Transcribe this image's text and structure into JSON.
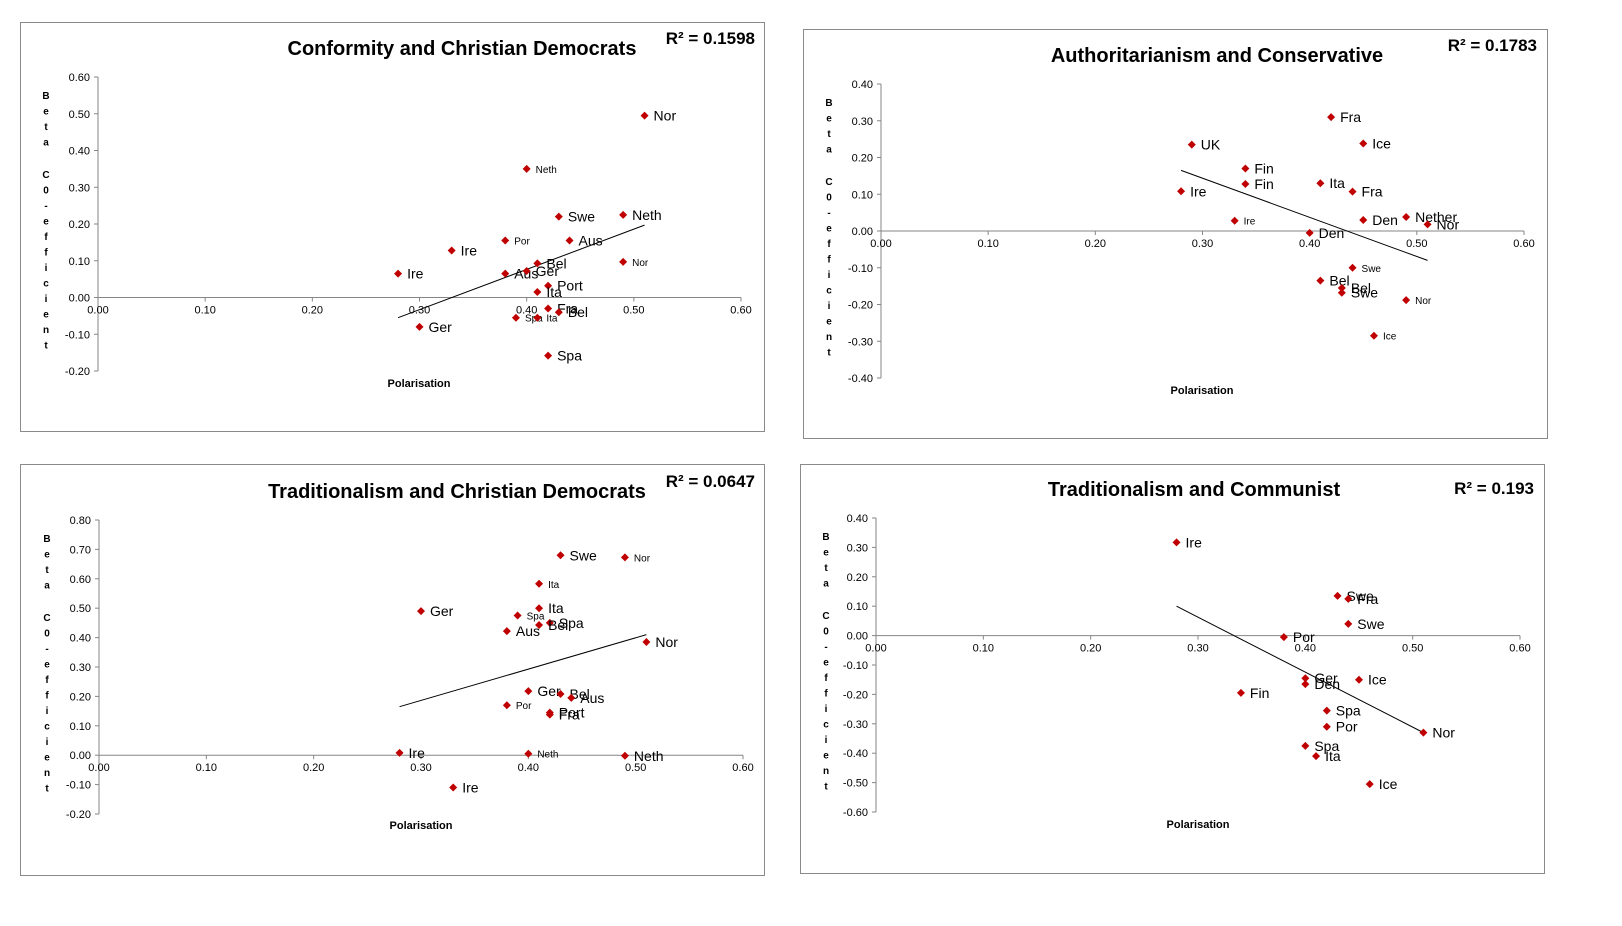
{
  "chart_data": [
    {
      "type": "scatter",
      "title": "Conformity and Christian Democrats",
      "r_squared": "R² = 0.1598",
      "xlabel": "Polarisation",
      "ylabel": "Beta C0-efficient",
      "xlim": [
        0,
        0.6
      ],
      "ylim": [
        -0.2,
        0.6
      ],
      "xticks": [
        "0.00",
        "0.10",
        "0.20",
        "0.30",
        "0.40",
        "0.50",
        "0.60"
      ],
      "yticks": [
        "0.60",
        "0.50",
        "0.40",
        "0.30",
        "0.20",
        "0.10",
        "0.00",
        "-0.10",
        "-0.20"
      ],
      "marker_color": "#c00000",
      "trendline": {
        "x": [
          0.28,
          0.51
        ],
        "y": [
          -0.055,
          0.197
        ]
      },
      "points": [
        {
          "label": "Nor",
          "x": 0.51,
          "y": 0.495,
          "big": true
        },
        {
          "label": "Neth",
          "x": 0.4,
          "y": 0.35,
          "big": false
        },
        {
          "label": "Swe",
          "x": 0.43,
          "y": 0.22,
          "big": true
        },
        {
          "label": "Neth",
          "x": 0.49,
          "y": 0.225,
          "big": true
        },
        {
          "label": "Por",
          "x": 0.38,
          "y": 0.155,
          "big": false
        },
        {
          "label": "Aus",
          "x": 0.44,
          "y": 0.155,
          "big": true
        },
        {
          "label": "Ire",
          "x": 0.33,
          "y": 0.128,
          "big": true
        },
        {
          "label": "Nor",
          "x": 0.49,
          "y": 0.097,
          "big": false
        },
        {
          "label": "Bel",
          "x": 0.41,
          "y": 0.093,
          "big": true
        },
        {
          "label": "Ire",
          "x": 0.28,
          "y": 0.065,
          "big": true
        },
        {
          "label": "Aus",
          "x": 0.38,
          "y": 0.065,
          "big": true
        },
        {
          "label": "Ger",
          "x": 0.4,
          "y": 0.072,
          "big": true
        },
        {
          "label": "Port",
          "x": 0.42,
          "y": 0.032,
          "big": true
        },
        {
          "label": "Ita",
          "x": 0.41,
          "y": 0.015,
          "big": true
        },
        {
          "label": "Fra",
          "x": 0.42,
          "y": -0.03,
          "big": true
        },
        {
          "label": "Bel",
          "x": 0.43,
          "y": -0.04,
          "big": true
        },
        {
          "label": "Spa",
          "x": 0.39,
          "y": -0.055,
          "big": false
        },
        {
          "label": "Ita",
          "x": 0.41,
          "y": -0.055,
          "big": false
        },
        {
          "label": "Ger",
          "x": 0.3,
          "y": -0.08,
          "big": true
        },
        {
          "label": "Spa",
          "x": 0.42,
          "y": -0.158,
          "big": true
        }
      ]
    },
    {
      "type": "scatter",
      "title": "Authoritarianism and Conservative",
      "r_squared": "R² = 0.1783",
      "xlabel": "Polarisation",
      "ylabel": "Beta C0-efficient",
      "xlim": [
        0,
        0.6
      ],
      "ylim": [
        -0.4,
        0.4
      ],
      "xticks": [
        "0.00",
        "0.10",
        "0.20",
        "0.30",
        "0.40",
        "0.50",
        "0.60"
      ],
      "yticks": [
        "0.40",
        "0.30",
        "0.20",
        "0.10",
        "0.00",
        "-0.10",
        "-0.20",
        "-0.30",
        "-0.40"
      ],
      "marker_color": "#c00000",
      "trendline": {
        "x": [
          0.28,
          0.51
        ],
        "y": [
          0.165,
          -0.08
        ]
      },
      "points": [
        {
          "label": "Fra",
          "x": 0.42,
          "y": 0.31,
          "big": true
        },
        {
          "label": "Ice",
          "x": 0.45,
          "y": 0.238,
          "big": true
        },
        {
          "label": "UK",
          "x": 0.29,
          "y": 0.235,
          "big": true
        },
        {
          "label": "Fin",
          "x": 0.34,
          "y": 0.17,
          "big": true
        },
        {
          "label": "Fin",
          "x": 0.34,
          "y": 0.128,
          "big": true
        },
        {
          "label": "Ita",
          "x": 0.41,
          "y": 0.13,
          "big": true
        },
        {
          "label": "Ire",
          "x": 0.28,
          "y": 0.108,
          "big": true
        },
        {
          "label": "Fra",
          "x": 0.44,
          "y": 0.107,
          "big": true
        },
        {
          "label": "Ire",
          "x": 0.33,
          "y": 0.028,
          "big": false
        },
        {
          "label": "Den",
          "x": 0.45,
          "y": 0.03,
          "big": true
        },
        {
          "label": "Nether",
          "x": 0.49,
          "y": 0.038,
          "big": true
        },
        {
          "label": "Nor",
          "x": 0.51,
          "y": 0.018,
          "big": true
        },
        {
          "label": "Den",
          "x": 0.4,
          "y": -0.005,
          "big": true
        },
        {
          "label": "Swe",
          "x": 0.44,
          "y": -0.1,
          "big": false
        },
        {
          "label": "Bel",
          "x": 0.41,
          "y": -0.135,
          "big": true
        },
        {
          "label": "Bel",
          "x": 0.43,
          "y": -0.155,
          "big": true
        },
        {
          "label": "Swe",
          "x": 0.43,
          "y": -0.168,
          "big": true
        },
        {
          "label": "Nor",
          "x": 0.49,
          "y": -0.188,
          "big": false
        },
        {
          "label": "Ice",
          "x": 0.46,
          "y": -0.285,
          "big": false
        }
      ]
    },
    {
      "type": "scatter",
      "title": "Traditionalism and Christian Democrats",
      "r_squared": "R² = 0.0647",
      "xlabel": "Polarisation",
      "ylabel": "Beta C0-efficient",
      "xlim": [
        0,
        0.6
      ],
      "ylim": [
        -0.2,
        0.8
      ],
      "xticks": [
        "0.00",
        "0.10",
        "0.20",
        "0.30",
        "0.40",
        "0.50",
        "0.60"
      ],
      "yticks": [
        "0.80",
        "0.70",
        "0.60",
        "0.50",
        "0.40",
        "0.30",
        "0.20",
        "0.10",
        "0.00",
        "-0.10",
        "-0.20"
      ],
      "marker_color": "#c00000",
      "trendline": {
        "x": [
          0.28,
          0.51
        ],
        "y": [
          0.165,
          0.41
        ]
      },
      "points": [
        {
          "label": "Swe",
          "x": 0.43,
          "y": 0.68,
          "big": true
        },
        {
          "label": "Nor",
          "x": 0.49,
          "y": 0.673,
          "big": false
        },
        {
          "label": "Ita",
          "x": 0.41,
          "y": 0.583,
          "big": false
        },
        {
          "label": "Ita",
          "x": 0.41,
          "y": 0.5,
          "big": true
        },
        {
          "label": "Ger",
          "x": 0.3,
          "y": 0.49,
          "big": true
        },
        {
          "label": "Spa",
          "x": 0.39,
          "y": 0.475,
          "big": false
        },
        {
          "label": "Spa",
          "x": 0.42,
          "y": 0.45,
          "big": true
        },
        {
          "label": "Bel",
          "x": 0.41,
          "y": 0.443,
          "big": true
        },
        {
          "label": "Aus",
          "x": 0.38,
          "y": 0.422,
          "big": true
        },
        {
          "label": "Nor",
          "x": 0.51,
          "y": 0.385,
          "big": true
        },
        {
          "label": "Ger",
          "x": 0.4,
          "y": 0.218,
          "big": true
        },
        {
          "label": "Bel",
          "x": 0.43,
          "y": 0.208,
          "big": true
        },
        {
          "label": "Aus",
          "x": 0.44,
          "y": 0.195,
          "big": true
        },
        {
          "label": "Por",
          "x": 0.38,
          "y": 0.17,
          "big": false
        },
        {
          "label": "Port",
          "x": 0.42,
          "y": 0.145,
          "big": true
        },
        {
          "label": "Fra",
          "x": 0.42,
          "y": 0.138,
          "big": true
        },
        {
          "label": "Ire",
          "x": 0.28,
          "y": 0.008,
          "big": true
        },
        {
          "label": "Neth",
          "x": 0.4,
          "y": 0.005,
          "big": false
        },
        {
          "label": "Neth",
          "x": 0.49,
          "y": -0.002,
          "big": true
        },
        {
          "label": "Ire",
          "x": 0.33,
          "y": -0.11,
          "big": true
        }
      ]
    },
    {
      "type": "scatter",
      "title": "Traditionalism and Communist",
      "r_squared": "R² = 0.193",
      "xlabel": "Polarisation",
      "ylabel": "Beta C0-efficient",
      "xlim": [
        0,
        0.6
      ],
      "ylim": [
        -0.6,
        0.4
      ],
      "xticks": [
        "0.00",
        "0.10",
        "0.20",
        "0.30",
        "0.40",
        "0.50",
        "0.60"
      ],
      "yticks": [
        "0.40",
        "0.30",
        "0.20",
        "0.10",
        "0.00",
        "-0.10",
        "-0.20",
        "-0.30",
        "-0.40",
        "-0.50",
        "-0.60"
      ],
      "marker_color": "#c00000",
      "trendline": {
        "x": [
          0.28,
          0.51
        ],
        "y": [
          0.1,
          -0.33
        ]
      },
      "points": [
        {
          "label": "Ire",
          "x": 0.28,
          "y": 0.317,
          "big": true
        },
        {
          "label": "Swe",
          "x": 0.43,
          "y": 0.135,
          "big": true
        },
        {
          "label": "Fra",
          "x": 0.44,
          "y": 0.125,
          "big": true
        },
        {
          "label": "Swe",
          "x": 0.44,
          "y": 0.04,
          "big": true
        },
        {
          "label": "Por",
          "x": 0.38,
          "y": -0.005,
          "big": true
        },
        {
          "label": "Ger",
          "x": 0.4,
          "y": -0.145,
          "big": true
        },
        {
          "label": "Den",
          "x": 0.4,
          "y": -0.165,
          "big": true
        },
        {
          "label": "Ice",
          "x": 0.45,
          "y": -0.15,
          "big": true
        },
        {
          "label": "Fin",
          "x": 0.34,
          "y": -0.195,
          "big": true
        },
        {
          "label": "Spa",
          "x": 0.42,
          "y": -0.255,
          "big": true
        },
        {
          "label": "Por",
          "x": 0.42,
          "y": -0.31,
          "big": true
        },
        {
          "label": "Nor",
          "x": 0.51,
          "y": -0.33,
          "big": true
        },
        {
          "label": "Spa",
          "x": 0.4,
          "y": -0.375,
          "big": true
        },
        {
          "label": "Ita",
          "x": 0.41,
          "y": -0.41,
          "big": true
        },
        {
          "label": "Ice",
          "x": 0.46,
          "y": -0.505,
          "big": true
        }
      ]
    }
  ]
}
